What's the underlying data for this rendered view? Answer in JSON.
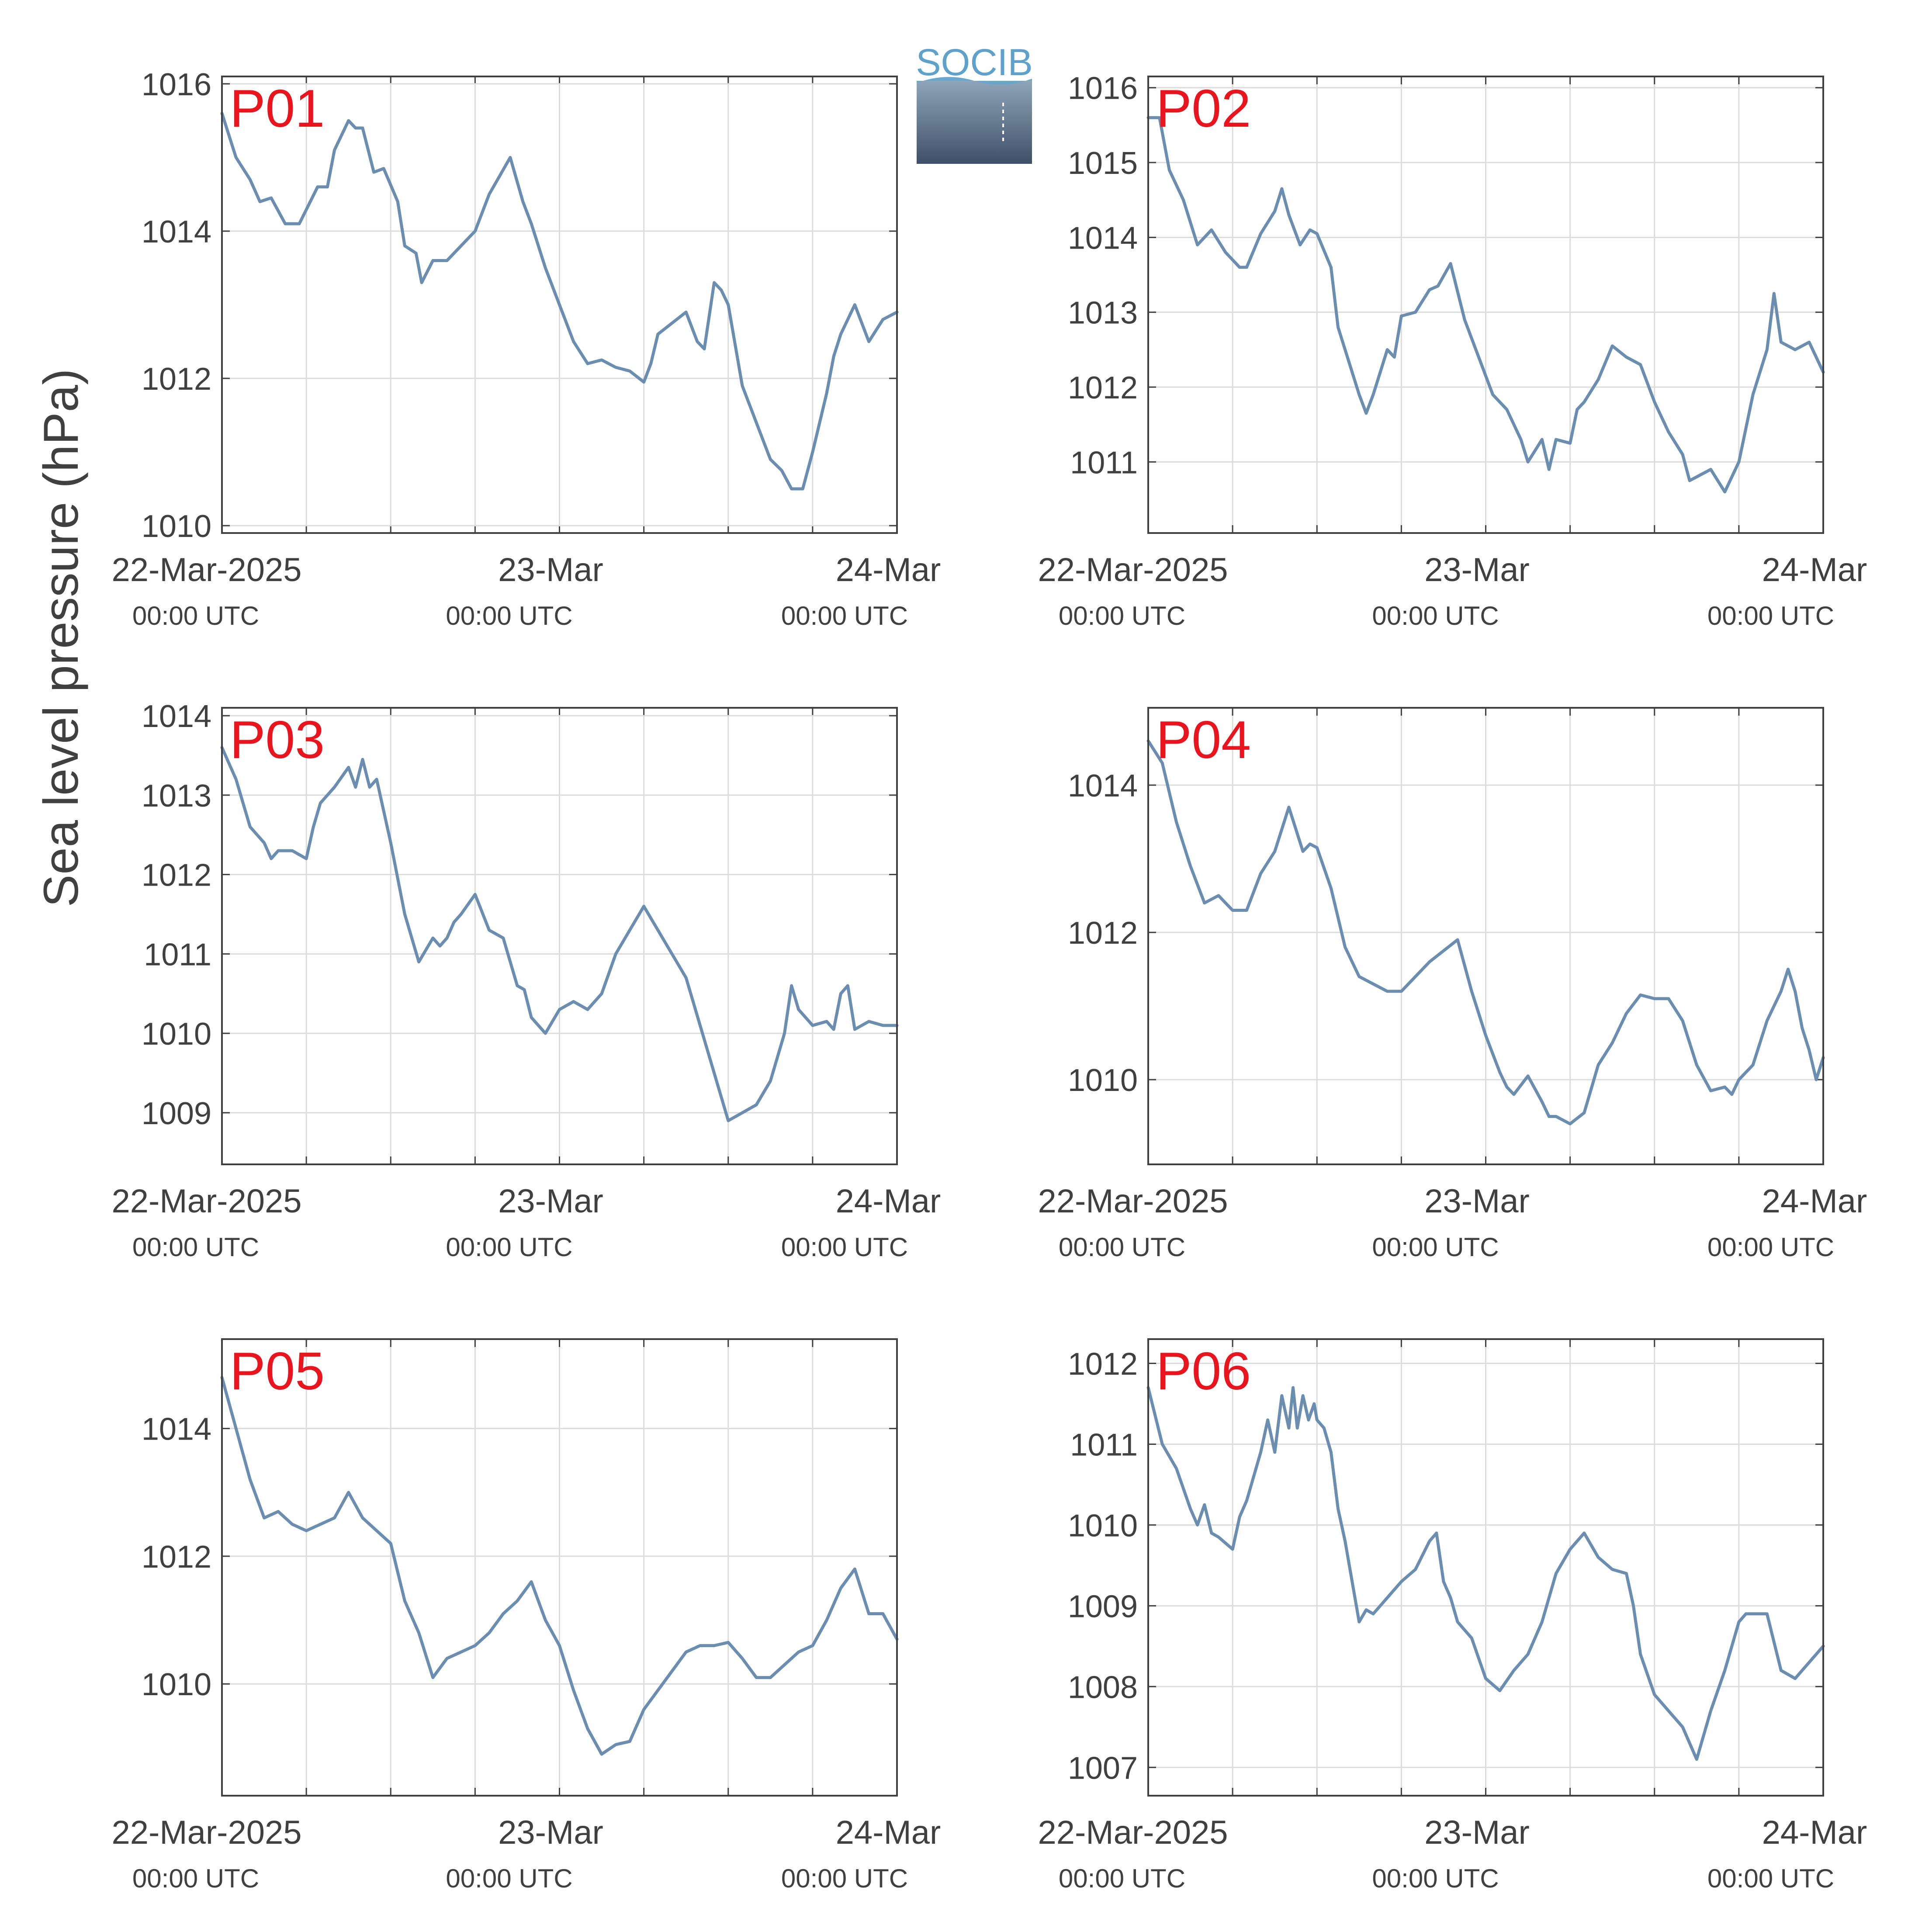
{
  "figure": {
    "ylabel": "Sea level pressure (hPa)",
    "logo_text": "SOCIB",
    "colors": {
      "line": "#6a8db0",
      "panel_label": "#e8141e",
      "axis": "#404040",
      "grid": "#dcdcdc",
      "text": "#404040"
    }
  },
  "chart_data": [
    {
      "type": "line",
      "title": "P01",
      "xlim": [
        0,
        48
      ],
      "ylim": [
        1009.9,
        1016.1
      ],
      "yticks": [
        1010,
        1012,
        1014,
        1016
      ],
      "xtick_labels": [
        {
          "x": 0,
          "date": "22-Mar-2025",
          "time": "00:00 UTC"
        },
        {
          "x": 24,
          "date": "23-Mar",
          "time": "00:00 UTC"
        },
        {
          "x": 48,
          "date": "24-Mar",
          "time": "00:00 UTC"
        }
      ],
      "x": [
        0,
        1,
        2,
        2.7,
        3.5,
        4.5,
        5.5,
        6.8,
        7.5,
        8,
        9,
        9.5,
        10,
        10.8,
        11.5,
        12.5,
        13,
        13.8,
        14.2,
        15,
        15.5,
        16,
        17.5,
        18,
        19,
        20.5,
        21.4,
        22,
        23,
        24,
        25,
        26,
        27,
        28,
        29,
        30,
        30.5,
        31,
        32,
        33,
        33.8,
        34.3,
        35,
        35.5,
        36,
        37,
        38,
        39,
        39.8,
        40.5,
        41.3,
        42,
        43,
        43.5,
        44,
        45,
        46,
        47,
        48
      ],
      "y": [
        1015.6,
        1015.0,
        1014.7,
        1014.4,
        1014.45,
        1014.1,
        1014.1,
        1014.6,
        1014.6,
        1015.1,
        1015.5,
        1015.4,
        1015.4,
        1014.8,
        1014.85,
        1014.4,
        1013.8,
        1013.7,
        1013.3,
        1013.6,
        1013.6,
        1013.6,
        1013.9,
        1014.0,
        1014.5,
        1015.0,
        1014.4,
        1014.1,
        1013.5,
        1013.0,
        1012.5,
        1012.2,
        1012.25,
        1012.15,
        1012.1,
        1011.95,
        1012.2,
        1012.6,
        1012.75,
        1012.9,
        1012.5,
        1012.4,
        1013.3,
        1013.2,
        1013.0,
        1011.9,
        1011.4,
        1010.9,
        1010.75,
        1010.5,
        1010.5,
        1011.0,
        1011.8,
        1012.3,
        1012.6,
        1013.0,
        1012.5,
        1012.8,
        1012.9
      ]
    },
    {
      "type": "line",
      "title": "P02",
      "xlim": [
        0,
        48
      ],
      "ylim": [
        1010.05,
        1016.15
      ],
      "yticks": [
        1011,
        1012,
        1013,
        1014,
        1015,
        1016
      ],
      "xtick_labels": [
        {
          "x": 0,
          "date": "22-Mar-2025",
          "time": "00:00 UTC"
        },
        {
          "x": 24,
          "date": "23-Mar",
          "time": "00:00 UTC"
        },
        {
          "x": 48,
          "date": "24-Mar",
          "time": "00:00 UTC"
        }
      ],
      "x": [
        0,
        0.8,
        1.5,
        2.5,
        3.5,
        4.5,
        5.5,
        6.5,
        7,
        8,
        9,
        9.5,
        10,
        10.8,
        11.5,
        12,
        13,
        13.5,
        14,
        15,
        15.5,
        16,
        17,
        17.5,
        18,
        19,
        20,
        20.6,
        21.5,
        22.5,
        23.5,
        24.5,
        25.5,
        26.5,
        27,
        28,
        28.5,
        29,
        30,
        30.5,
        31,
        32,
        33,
        34,
        35,
        36,
        37,
        38,
        38.5,
        39,
        40,
        41,
        42,
        43,
        44,
        44.5,
        45,
        46,
        47,
        48
      ],
      "y": [
        1015.6,
        1015.6,
        1014.9,
        1014.5,
        1013.9,
        1014.1,
        1013.8,
        1013.6,
        1013.6,
        1014.05,
        1014.35,
        1014.65,
        1014.3,
        1013.9,
        1014.1,
        1014.05,
        1013.6,
        1012.8,
        1012.5,
        1011.9,
        1011.65,
        1011.9,
        1012.5,
        1012.4,
        1012.95,
        1013.0,
        1013.3,
        1013.35,
        1013.65,
        1012.9,
        1012.4,
        1011.9,
        1011.7,
        1011.3,
        1011.0,
        1011.3,
        1010.9,
        1011.3,
        1011.25,
        1011.7,
        1011.8,
        1012.1,
        1012.55,
        1012.4,
        1012.3,
        1011.8,
        1011.4,
        1011.1,
        1010.75,
        1010.8,
        1010.9,
        1010.6,
        1011.0,
        1011.9,
        1012.5,
        1013.25,
        1012.6,
        1012.5,
        1012.6,
        1012.2
      ]
    },
    {
      "type": "line",
      "title": "P03",
      "xlim": [
        0,
        48
      ],
      "ylim": [
        1008.35,
        1014.1
      ],
      "yticks": [
        1009,
        1010,
        1011,
        1012,
        1013,
        1014
      ],
      "xtick_labels": [
        {
          "x": 0,
          "date": "22-Mar-2025",
          "time": "00:00 UTC"
        },
        {
          "x": 24,
          "date": "23-Mar",
          "time": "00:00 UTC"
        },
        {
          "x": 48,
          "date": "24-Mar",
          "time": "00:00 UTC"
        }
      ],
      "x": [
        0,
        1,
        2,
        3,
        3.5,
        4,
        5,
        6,
        6.5,
        7,
        8,
        9,
        9.5,
        10,
        10.5,
        11,
        12,
        13,
        14,
        15,
        15.5,
        16,
        16.5,
        17,
        18,
        19,
        20,
        21,
        21.5,
        22,
        22.5,
        23,
        24,
        25,
        26,
        27,
        28,
        29,
        30,
        31,
        32,
        33,
        34,
        35,
        36,
        37,
        38,
        39,
        40,
        40.5,
        41,
        42,
        43,
        43.5,
        44,
        44.5,
        45,
        46,
        47,
        48
      ],
      "y": [
        1013.6,
        1013.2,
        1012.6,
        1012.4,
        1012.2,
        1012.3,
        1012.3,
        1012.2,
        1012.6,
        1012.9,
        1013.1,
        1013.35,
        1013.1,
        1013.45,
        1013.1,
        1013.2,
        1012.4,
        1011.5,
        1010.9,
        1011.2,
        1011.1,
        1011.2,
        1011.4,
        1011.5,
        1011.75,
        1011.3,
        1011.2,
        1010.6,
        1010.55,
        1010.2,
        1010.1,
        1010.0,
        1010.3,
        1010.4,
        1010.3,
        1010.5,
        1011.0,
        1011.3,
        1011.6,
        1011.3,
        1011.0,
        1010.7,
        1010.1,
        1009.5,
        1008.9,
        1009.0,
        1009.1,
        1009.4,
        1010.0,
        1010.6,
        1010.3,
        1010.1,
        1010.15,
        1010.05,
        1010.5,
        1010.6,
        1010.05,
        1010.15,
        1010.1,
        1010.1
      ]
    },
    {
      "type": "line",
      "title": "P04",
      "xlim": [
        0,
        48
      ],
      "ylim": [
        1008.85,
        1015.05
      ],
      "yticks": [
        1010,
        1012,
        1014
      ],
      "xtick_labels": [
        {
          "x": 0,
          "date": "22-Mar-2025",
          "time": "00:00 UTC"
        },
        {
          "x": 24,
          "date": "23-Mar",
          "time": "00:00 UTC"
        },
        {
          "x": 48,
          "date": "24-Mar",
          "time": "00:00 UTC"
        }
      ],
      "x": [
        0,
        1,
        2,
        3,
        4,
        5,
        6,
        6.5,
        7,
        8,
        9,
        9.5,
        10,
        11,
        11.5,
        12,
        13,
        14,
        15,
        16,
        17,
        18,
        19,
        20,
        21,
        22,
        23,
        24,
        25,
        25.5,
        26,
        27,
        28,
        28.5,
        29,
        30,
        31,
        32,
        33,
        34,
        35,
        36,
        37,
        38,
        38.5,
        39,
        40,
        41,
        41.5,
        42,
        43,
        44,
        45,
        45.5,
        46,
        46.5,
        47,
        47.5,
        48
      ],
      "y": [
        1014.6,
        1014.3,
        1013.5,
        1012.9,
        1012.4,
        1012.5,
        1012.3,
        1012.3,
        1012.3,
        1012.8,
        1013.1,
        1013.4,
        1013.7,
        1013.1,
        1013.2,
        1013.15,
        1012.6,
        1011.8,
        1011.4,
        1011.3,
        1011.2,
        1011.2,
        1011.4,
        1011.6,
        1011.75,
        1011.9,
        1011.2,
        1010.6,
        1010.1,
        1009.9,
        1009.8,
        1010.05,
        1009.7,
        1009.5,
        1009.5,
        1009.4,
        1009.55,
        1010.2,
        1010.5,
        1010.9,
        1011.15,
        1011.1,
        1011.1,
        1010.8,
        1010.5,
        1010.2,
        1009.85,
        1009.9,
        1009.8,
        1010.0,
        1010.2,
        1010.8,
        1011.2,
        1011.5,
        1011.2,
        1010.7,
        1010.4,
        1010.0,
        1010.3
      ]
    },
    {
      "type": "line",
      "title": "P05",
      "xlim": [
        0,
        48
      ],
      "ylim": [
        1008.25,
        1015.4
      ],
      "yticks": [
        1010,
        1012,
        1014
      ],
      "xtick_labels": [
        {
          "x": 0,
          "date": "22-Mar-2025",
          "time": "00:00 UTC"
        },
        {
          "x": 24,
          "date": "23-Mar",
          "time": "00:00 UTC"
        },
        {
          "x": 48,
          "date": "24-Mar",
          "time": "00:00 UTC"
        }
      ],
      "x": [
        0,
        1,
        2,
        3,
        4,
        5,
        6,
        7,
        8,
        9,
        10,
        11,
        12,
        13,
        14,
        15,
        16,
        17,
        18,
        19,
        20,
        21,
        22,
        23,
        24,
        25,
        26,
        27,
        28,
        29,
        30,
        31,
        32,
        33,
        34,
        35,
        36,
        37,
        38,
        39,
        40,
        41,
        42,
        43,
        44,
        45,
        46,
        47,
        48
      ],
      "y": [
        1014.8,
        1014.0,
        1013.2,
        1012.6,
        1012.7,
        1012.5,
        1012.4,
        1012.5,
        1012.6,
        1013.0,
        1012.6,
        1012.4,
        1012.2,
        1011.3,
        1010.8,
        1010.1,
        1010.4,
        1010.5,
        1010.6,
        1010.8,
        1011.1,
        1011.3,
        1011.6,
        1011.0,
        1010.6,
        1009.9,
        1009.3,
        1008.9,
        1009.05,
        1009.1,
        1009.6,
        1009.9,
        1010.2,
        1010.5,
        1010.6,
        1010.6,
        1010.65,
        1010.4,
        1010.1,
        1010.1,
        1010.3,
        1010.5,
        1010.6,
        1011.0,
        1011.5,
        1011.8,
        1011.1,
        1011.1,
        1010.7
      ]
    },
    {
      "type": "line",
      "title": "P06",
      "xlim": [
        0,
        48
      ],
      "ylim": [
        1006.65,
        1012.3
      ],
      "yticks": [
        1007,
        1008,
        1009,
        1010,
        1011,
        1012
      ],
      "xtick_labels": [
        {
          "x": 0,
          "date": "22-Mar-2025",
          "time": "00:00 UTC"
        },
        {
          "x": 24,
          "date": "23-Mar",
          "time": "00:00 UTC"
        },
        {
          "x": 48,
          "date": "24-Mar",
          "time": "00:00 UTC"
        }
      ],
      "x": [
        0,
        1,
        2,
        3,
        3.5,
        4,
        4.5,
        5,
        6,
        6.5,
        7,
        8,
        8.5,
        9,
        9.5,
        10,
        10.3,
        10.6,
        11,
        11.4,
        11.8,
        12,
        12.5,
        13,
        13.5,
        14,
        15,
        15.5,
        16,
        17,
        18,
        19,
        20,
        20.5,
        21,
        21.5,
        22,
        23,
        24,
        25,
        26,
        27,
        28,
        29,
        30,
        31,
        32,
        33,
        34,
        34.5,
        35,
        36,
        37,
        38,
        39,
        40,
        41,
        42,
        42.5,
        43,
        44,
        45,
        46,
        47,
        48
      ],
      "y": [
        1011.7,
        1011.0,
        1010.7,
        1010.2,
        1010.0,
        1010.25,
        1009.9,
        1009.85,
        1009.7,
        1010.1,
        1010.3,
        1010.9,
        1011.3,
        1010.9,
        1011.6,
        1011.2,
        1011.7,
        1011.2,
        1011.6,
        1011.3,
        1011.5,
        1011.3,
        1011.2,
        1010.9,
        1010.2,
        1009.8,
        1008.8,
        1008.95,
        1008.9,
        1009.1,
        1009.3,
        1009.45,
        1009.8,
        1009.9,
        1009.3,
        1009.1,
        1008.8,
        1008.6,
        1008.1,
        1007.95,
        1008.2,
        1008.4,
        1008.8,
        1009.4,
        1009.7,
        1009.9,
        1009.6,
        1009.45,
        1009.4,
        1009.0,
        1008.4,
        1007.9,
        1007.7,
        1007.5,
        1007.1,
        1007.7,
        1008.2,
        1008.8,
        1008.9,
        1008.9,
        1008.9,
        1008.2,
        1008.1,
        1008.3,
        1008.5
      ]
    }
  ]
}
